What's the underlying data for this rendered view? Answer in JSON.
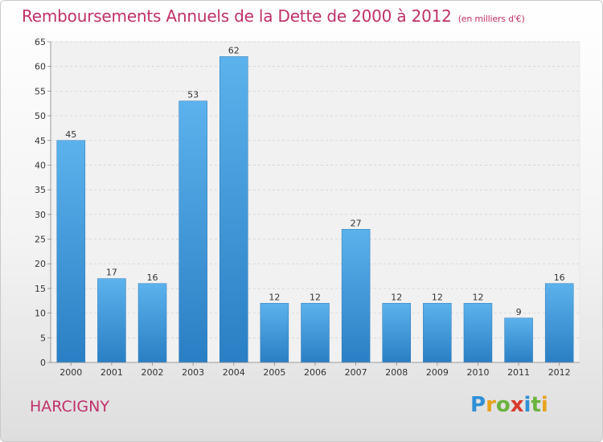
{
  "title": "Remboursements Annuels de la Dette de 2000 à 2012",
  "subtitle": "(en milliers d'€)",
  "commune": "HARCIGNY",
  "logo": {
    "letters": [
      "P",
      "r",
      "o",
      "x",
      "i",
      "t",
      "i"
    ],
    "colors": [
      "#2f8fd6",
      "#e8a21e",
      "#6ab33e",
      "#d83a2e",
      "#2f8fd6",
      "#6ab33e",
      "#e8a21e"
    ]
  },
  "chart_data": {
    "type": "bar",
    "categories": [
      "2000",
      "2001",
      "2002",
      "2003",
      "2004",
      "2005",
      "2006",
      "2007",
      "2008",
      "2009",
      "2010",
      "2011",
      "2012"
    ],
    "values": [
      45,
      17,
      16,
      53,
      62,
      12,
      12,
      27,
      12,
      12,
      12,
      9,
      16
    ],
    "title": "Remboursements Annuels de la Dette de 2000 à 2012",
    "subtitle": "(en milliers d'€)",
    "ylim": [
      0,
      65
    ],
    "yticks": [
      0,
      5,
      10,
      15,
      20,
      25,
      30,
      35,
      40,
      45,
      50,
      55,
      60,
      65
    ],
    "grid": true,
    "bar_color": "#3a9de0"
  }
}
